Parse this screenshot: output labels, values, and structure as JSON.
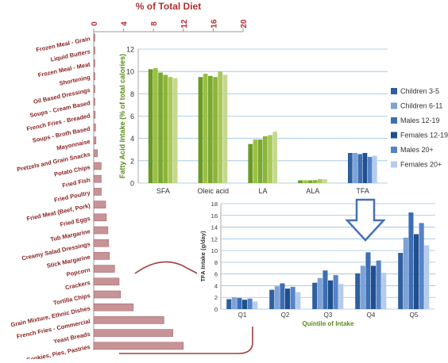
{
  "chart_data": [
    {
      "type": "bar",
      "orientation": "horizontal",
      "title": "% of Total Diet",
      "xlim": [
        0,
        20
      ],
      "x_ticks": [
        0,
        4,
        8,
        12,
        16,
        20
      ],
      "categories": [
        "Frozen Meal - Grain",
        "Liquid Butters",
        "Frozen Meal - Meat",
        "Shortening",
        "Oil Based Dressings",
        "Soups - Cream Based",
        "French Fries - Breaded",
        "Soups - Broth Based",
        "Mayonnaise",
        "Pretzels and Grain Snacks",
        "Potato Chips",
        "Fried Fish",
        "Fried Poultry",
        "Fried Meat (Beef, Pork)",
        "Fried Eggs",
        "Tub Margarine",
        "Creamy Salad Dressings",
        "Stick Margarine",
        "Popcorn",
        "Crackers",
        "Tortilla Chips",
        "Grain Mixture, Ethnic Dishes",
        "French Fries - Commercial",
        "Yeast Breads",
        "Cakes, Cookies, Pies, Pastries"
      ],
      "values": [
        0.05,
        0.05,
        0.08,
        0.1,
        0.12,
        0.15,
        0.2,
        0.25,
        0.3,
        0.5,
        1.0,
        1.2,
        1.4,
        1.6,
        1.7,
        1.9,
        2.0,
        2.1,
        2.8,
        3.4,
        3.6,
        5.3,
        9.4,
        10.6,
        12.0
      ],
      "color": "#c79396"
    },
    {
      "type": "bar",
      "ylabel": "Fatty Acid Intake (% of total calories)",
      "ylim": [
        0,
        12
      ],
      "y_ticks": [
        0,
        2,
        4,
        6,
        8,
        10,
        12
      ],
      "categories": [
        "SFA",
        "Oleic acid",
        "LA",
        "ALA",
        "TFA"
      ],
      "series": [
        {
          "name": "Children 3-5",
          "values": [
            10.2,
            9.5,
            3.5,
            0.25,
            2.7
          ]
        },
        {
          "name": "Children 6-11",
          "values": [
            10.3,
            9.8,
            3.9,
            0.25,
            2.7
          ]
        },
        {
          "name": "Males 12-19",
          "values": [
            9.9,
            9.6,
            3.9,
            0.25,
            2.6
          ]
        },
        {
          "name": "Females 12-19",
          "values": [
            9.7,
            9.5,
            4.2,
            0.27,
            2.7
          ]
        },
        {
          "name": "Males 20+",
          "values": [
            9.5,
            10.0,
            4.3,
            0.35,
            2.35
          ]
        },
        {
          "name": "Females 20+",
          "values": [
            9.4,
            9.7,
            4.6,
            0.35,
            2.45
          ]
        }
      ],
      "colors_green": [
        "#6a9a22",
        "#9cc044",
        "#7aa830",
        "#8cb638",
        "#aac85a",
        "#c4d98e"
      ],
      "legend_colors": [
        "#2e5f9e",
        "#7ca2d8",
        "#3d6eb4",
        "#1f4f8c",
        "#5682c8",
        "#b4ccec"
      ]
    },
    {
      "type": "bar",
      "xlabel": "Quintile of Intake",
      "ylabel": "TFA Intake (g/day)",
      "ylim": [
        0,
        18
      ],
      "y_ticks": [
        0,
        2,
        4,
        6,
        8,
        10,
        12,
        14,
        16,
        18
      ],
      "categories": [
        "Q1",
        "Q2",
        "Q3",
        "Q4",
        "Q5"
      ],
      "series": [
        {
          "name": "Children 3-5",
          "values": [
            1.7,
            3.3,
            4.5,
            6.1,
            9.6
          ]
        },
        {
          "name": "Children 6-11",
          "values": [
            2.0,
            3.9,
            5.3,
            7.4,
            12.2
          ]
        },
        {
          "name": "Males 12-19",
          "values": [
            1.9,
            4.4,
            6.6,
            9.7,
            16.5
          ]
        },
        {
          "name": "Females 12-19",
          "values": [
            1.6,
            3.5,
            4.9,
            7.4,
            12.8
          ]
        },
        {
          "name": "Males 20+",
          "values": [
            1.8,
            3.8,
            5.8,
            8.3,
            14.7
          ]
        },
        {
          "name": "Females 20+",
          "values": [
            1.3,
            2.9,
            4.3,
            6.2,
            10.9
          ]
        }
      ],
      "colors": [
        "#2e5f9e",
        "#7ca2d8",
        "#3d6eb4",
        "#1f4f8c",
        "#5682c8",
        "#b4ccec"
      ]
    }
  ]
}
